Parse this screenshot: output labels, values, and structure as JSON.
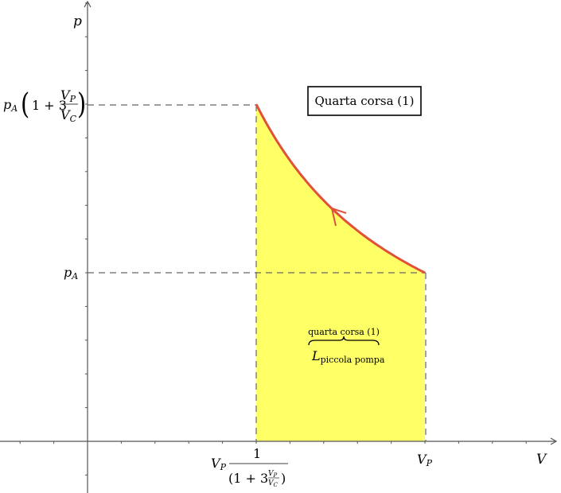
{
  "diagram": {
    "axes": {
      "x_label": "V",
      "y_label": "p"
    },
    "x_ticks": {
      "left_prefix": "V",
      "left_prefix_sub": "P",
      "left_numerator": "1",
      "left_denominator": "(1 + 3",
      "left_denominator_frac_num": "V",
      "left_denominator_frac_num_sub": "P",
      "left_denominator_frac_den": "V",
      "left_denominator_frac_den_sub": "C",
      "left_close": ")",
      "right": "V",
      "right_sub": "P"
    },
    "y_ticks": {
      "top_prefix": "p",
      "top_prefix_sub": "A",
      "top_open": "(",
      "top_body": "1 + 3",
      "top_frac_num": "V",
      "top_frac_num_sub": "P",
      "top_frac_den": "V",
      "top_frac_den_sub": "C",
      "top_close": ")",
      "bottom": "p",
      "bottom_sub": "A"
    },
    "title_box": "Quarta corsa (1)",
    "area_label": {
      "over": "quarta corsa (1)",
      "main": "L",
      "main_sub": "piccola pompa"
    },
    "curve": {
      "type": "isotherm pV = const",
      "direction": "from V_P toward smaller V (compression)"
    },
    "colors": {
      "curve": "#e0513a",
      "area": "#ffff66",
      "dash": "#666666",
      "axis": "#555555"
    }
  }
}
